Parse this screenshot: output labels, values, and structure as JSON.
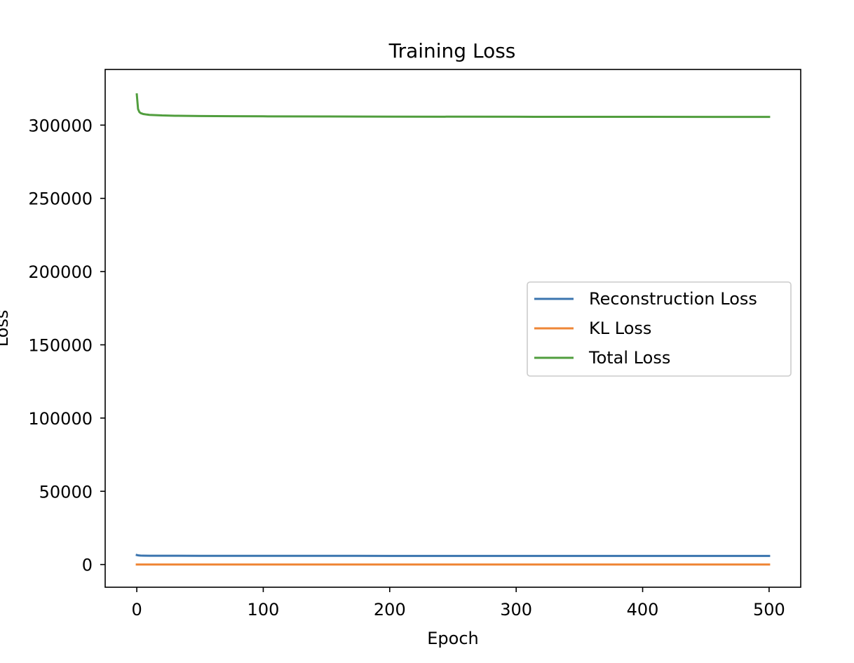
{
  "chart_data": {
    "type": "line",
    "title": "Training Loss",
    "xlabel": "Epoch",
    "ylabel": "Loss",
    "xlim": [
      -25,
      525
    ],
    "ylim": [
      -15500,
      338000
    ],
    "x_ticks": [
      0,
      100,
      200,
      300,
      400,
      500
    ],
    "y_ticks": [
      0,
      50000,
      100000,
      150000,
      200000,
      250000,
      300000
    ],
    "grid": false,
    "legend_position": "center-right",
    "series": [
      {
        "name": "Reconstruction Loss",
        "color": "#3b75af",
        "x": [
          0,
          1,
          2,
          3,
          5,
          10,
          20,
          50,
          100,
          200,
          300,
          400,
          500
        ],
        "y": [
          6500,
          6300,
          6200,
          6100,
          6050,
          6000,
          6000,
          5950,
          5950,
          5900,
          5900,
          5900,
          5900
        ]
      },
      {
        "name": "KL Loss",
        "color": "#ef8636",
        "x": [
          0,
          100,
          200,
          300,
          400,
          500
        ],
        "y": [
          20,
          15,
          12,
          10,
          10,
          10
        ]
      },
      {
        "name": "Total Loss",
        "color": "#519e3e",
        "x": [
          0,
          1,
          2,
          3,
          5,
          8,
          10,
          15,
          20,
          30,
          50,
          75,
          100,
          150,
          200,
          300,
          400,
          500
        ],
        "y": [
          321000,
          311000,
          309000,
          308200,
          307600,
          307200,
          307000,
          306800,
          306600,
          306400,
          306200,
          306100,
          306000,
          305900,
          305800,
          305700,
          305650,
          305600
        ]
      }
    ]
  }
}
